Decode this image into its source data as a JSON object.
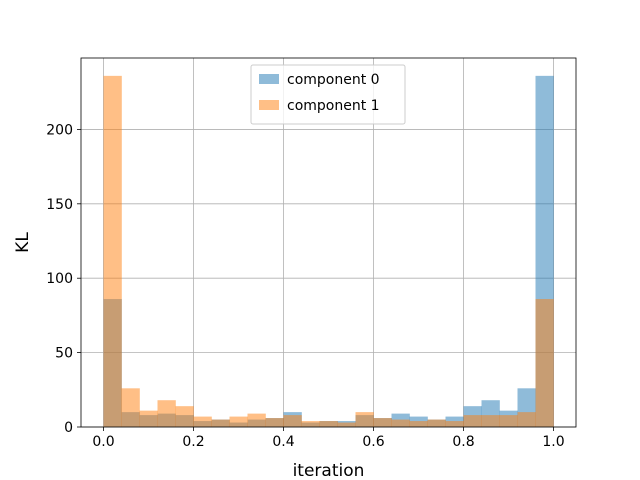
{
  "chart_data": {
    "type": "bar",
    "subtype": "histogram-overlay",
    "title": "",
    "xlabel": "iteration",
    "ylabel": "KL",
    "xlim": [
      -0.05,
      1.05
    ],
    "ylim": [
      0,
      248
    ],
    "grid": true,
    "legend_position": "top-center",
    "bin_edges": [
      0.0,
      0.04,
      0.08,
      0.12,
      0.16,
      0.2,
      0.24,
      0.28,
      0.32,
      0.36,
      0.4,
      0.44,
      0.48,
      0.52,
      0.56,
      0.6,
      0.64,
      0.68,
      0.72,
      0.76,
      0.8,
      0.84,
      0.88,
      0.92,
      0.96,
      1.0
    ],
    "series": [
      {
        "name": "component 0",
        "color": "#1f77b4",
        "opacity": 0.5,
        "values": [
          86,
          10,
          8,
          9,
          8,
          4,
          5,
          3,
          5,
          6,
          10,
          3,
          4,
          4,
          8,
          6,
          9,
          7,
          5,
          7,
          14,
          18,
          11,
          26,
          236
        ]
      },
      {
        "name": "component 1",
        "color": "#ff7f0e",
        "opacity": 0.5,
        "values": [
          236,
          26,
          11,
          18,
          14,
          7,
          5,
          7,
          9,
          6,
          8,
          4,
          4,
          3,
          10,
          6,
          5,
          4,
          5,
          4,
          8,
          8,
          8,
          10,
          86
        ]
      }
    ],
    "xticks": [
      {
        "value": 0.0,
        "label": "0.0"
      },
      {
        "value": 0.2,
        "label": "0.2"
      },
      {
        "value": 0.4,
        "label": "0.4"
      },
      {
        "value": 0.6,
        "label": "0.6"
      },
      {
        "value": 0.8,
        "label": "0.8"
      },
      {
        "value": 1.0,
        "label": "1.0"
      }
    ],
    "yticks": [
      {
        "value": 0,
        "label": "0"
      },
      {
        "value": 50,
        "label": "50"
      },
      {
        "value": 100,
        "label": "100"
      },
      {
        "value": 150,
        "label": "150"
      },
      {
        "value": 200,
        "label": "200"
      }
    ]
  }
}
